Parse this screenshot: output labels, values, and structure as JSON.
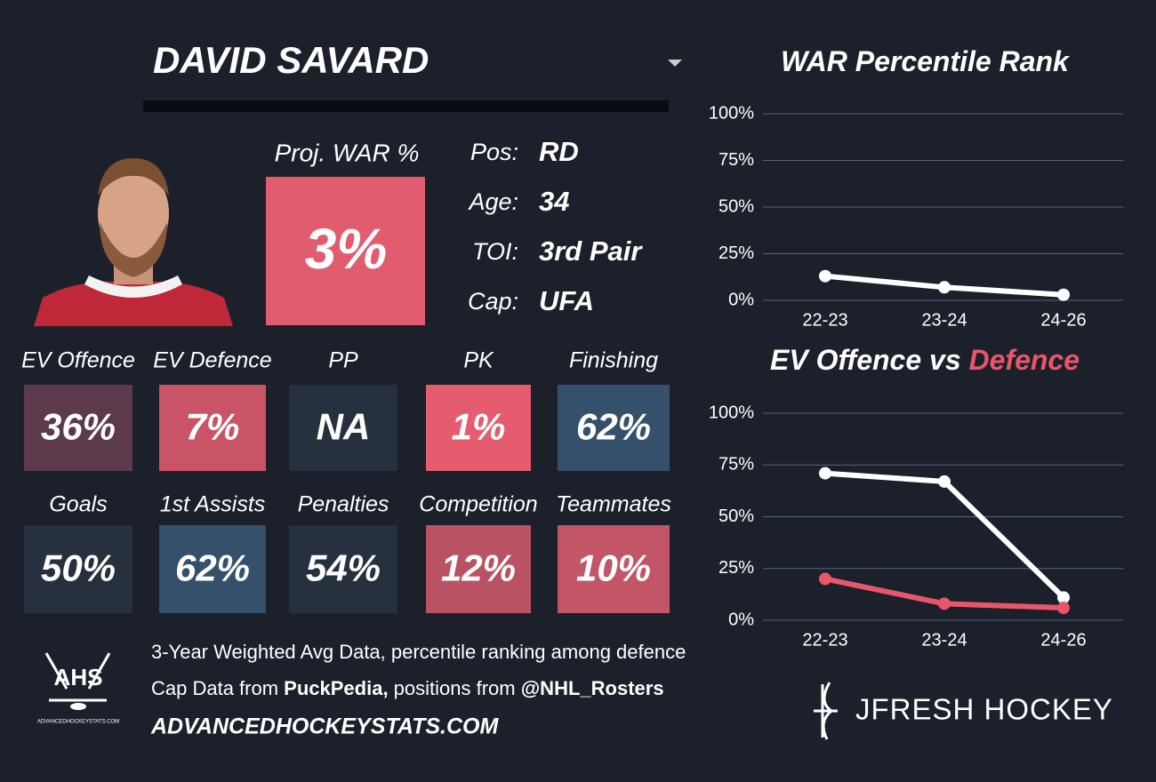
{
  "header": {
    "title": "DAVID SAVARD"
  },
  "proj_war": {
    "label": "Proj. WAR %",
    "value": "3%",
    "color": "#e05c6e"
  },
  "info": [
    {
      "label": "Pos:",
      "value": "RD"
    },
    {
      "label": "Age:",
      "value": "34"
    },
    {
      "label": "TOI:",
      "value": "3rd Pair"
    },
    {
      "label": "Cap:",
      "value": "UFA"
    }
  ],
  "tiles": [
    {
      "label": "EV Offence",
      "value": "36%",
      "color": "#5c3a4c"
    },
    {
      "label": "EV Defence",
      "value": "7%",
      "color": "#c85466"
    },
    {
      "label": "PP",
      "value": "NA",
      "color": "#27303e"
    },
    {
      "label": "PK",
      "value": "1%",
      "color": "#e45c6d"
    },
    {
      "label": "Finishing",
      "value": "62%",
      "color": "#34506b"
    },
    {
      "label": "Goals",
      "value": "50%",
      "color": "#27303e"
    },
    {
      "label": "1st Assists",
      "value": "62%",
      "color": "#34506b"
    },
    {
      "label": "Penalties",
      "value": "54%",
      "color": "#27303e"
    },
    {
      "label": "Competition",
      "value": "12%",
      "color": "#b95263"
    },
    {
      "label": "Teammates",
      "value": "10%",
      "color": "#c25566"
    }
  ],
  "footer": {
    "line1": "3-Year Weighted Avg Data, percentile ranking among defence",
    "line2": [
      "Cap Data from ",
      "PuckPedia,",
      " positions from ",
      "@NHL_Rosters"
    ],
    "site": "ADVANCEDHOCKEYSTATS.COM",
    "logo": "AHS",
    "logo_sub": "ADVANCEDHOCKEYSTATS.COM",
    "brand": "JFRESH HOCKEY"
  },
  "chart_data": [
    {
      "type": "line",
      "title": [
        {
          "text": "WAR Percentile Rank",
          "color": "#ffffff"
        }
      ],
      "categories": [
        "22-23",
        "23-24",
        "24-26"
      ],
      "series": [
        {
          "color": "#ffffff",
          "values": [
            13,
            7,
            3
          ]
        }
      ],
      "ylim": [
        0,
        100
      ],
      "yticks": [
        {
          "value": 0,
          "label": "0%"
        },
        {
          "value": 25,
          "label": "25%"
        },
        {
          "value": 50,
          "label": "50%"
        },
        {
          "value": 75,
          "label": "75%"
        },
        {
          "value": 100,
          "label": "100%"
        }
      ],
      "grid": true
    },
    {
      "type": "line",
      "title": [
        {
          "text": "EV Offence vs ",
          "color": "#ffffff"
        },
        {
          "text": "Defence",
          "color": "#e8566a"
        }
      ],
      "categories": [
        "22-23",
        "23-24",
        "24-26"
      ],
      "series": [
        {
          "color": "#ffffff",
          "values": [
            71,
            67,
            11
          ]
        },
        {
          "color": "#e8566a",
          "values": [
            20,
            8,
            6
          ]
        }
      ],
      "ylim": [
        0,
        100
      ],
      "yticks": [
        {
          "value": 0,
          "label": "0%"
        },
        {
          "value": 25,
          "label": "25%"
        },
        {
          "value": 50,
          "label": "50%"
        },
        {
          "value": 75,
          "label": "75%"
        },
        {
          "value": 100,
          "label": "100%"
        }
      ],
      "grid": true
    }
  ]
}
